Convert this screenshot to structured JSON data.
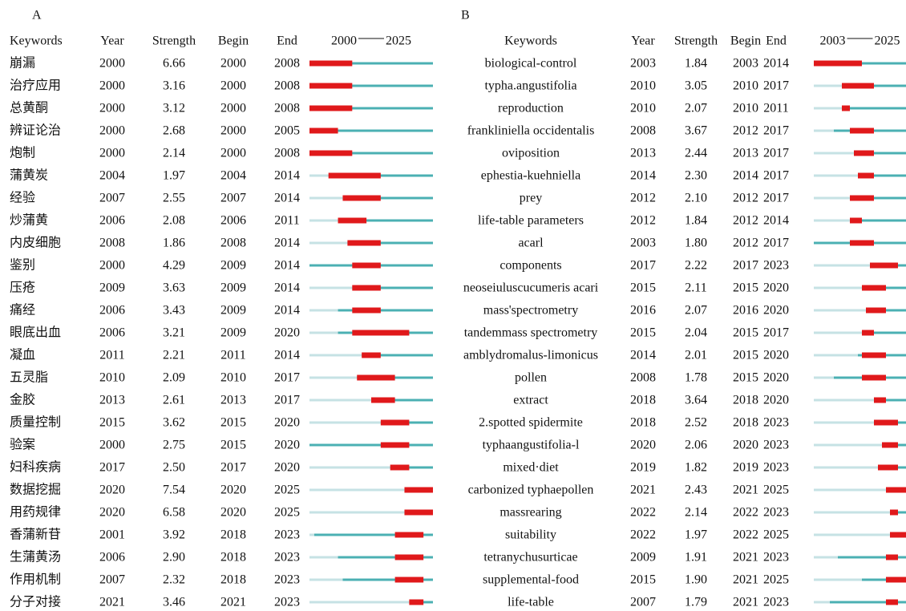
{
  "panels": [
    {
      "label": "A",
      "headers": [
        "Keywords",
        "Year",
        "Strength",
        "Begin",
        "End"
      ],
      "range": {
        "start": 2000,
        "end": 2025
      },
      "rows": [
        [
          "崩漏",
          2000,
          "6.66",
          2000,
          2008
        ],
        [
          "治疗应用",
          2000,
          "3.16",
          2000,
          2008
        ],
        [
          "总黄酮",
          2000,
          "3.12",
          2000,
          2008
        ],
        [
          "辨证论治",
          2000,
          "2.68",
          2000,
          2005
        ],
        [
          "炮制",
          2000,
          "2.14",
          2000,
          2008
        ],
        [
          "蒲黄炭",
          2004,
          "1.97",
          2004,
          2014
        ],
        [
          "经验",
          2007,
          "2.55",
          2007,
          2014
        ],
        [
          "炒蒲黄",
          2006,
          "2.08",
          2006,
          2011
        ],
        [
          "内皮细胞",
          2008,
          "1.86",
          2008,
          2014
        ],
        [
          "鉴别",
          2000,
          "4.29",
          2009,
          2014
        ],
        [
          "压疮",
          2009,
          "3.63",
          2009,
          2014
        ],
        [
          "痛经",
          2006,
          "3.43",
          2009,
          2014
        ],
        [
          "眼底出血",
          2006,
          "3.21",
          2009,
          2020
        ],
        [
          "凝血",
          2011,
          "2.21",
          2011,
          2014
        ],
        [
          "五灵脂",
          2010,
          "2.09",
          2010,
          2017
        ],
        [
          "金胶",
          2013,
          "2.61",
          2013,
          2017
        ],
        [
          "质量控制",
          2015,
          "3.62",
          2015,
          2020
        ],
        [
          "验案",
          2000,
          "2.75",
          2015,
          2020
        ],
        [
          "妇科疾病",
          2017,
          "2.50",
          2017,
          2020
        ],
        [
          "数据挖掘",
          2020,
          "7.54",
          2020,
          2025
        ],
        [
          "用药规律",
          2020,
          "6.58",
          2020,
          2025
        ],
        [
          "香蒲新苷",
          2001,
          "3.92",
          2018,
          2023
        ],
        [
          "生蒲黄汤",
          2006,
          "2.90",
          2018,
          2023
        ],
        [
          "作用机制",
          2007,
          "2.32",
          2018,
          2023
        ],
        [
          "分子对接",
          2021,
          "3.46",
          2021,
          2023
        ]
      ]
    },
    {
      "label": "B",
      "headers": [
        "Keywords",
        "Year",
        "Strength",
        "Begin",
        "End"
      ],
      "range": {
        "start": 2003,
        "end": 2025
      },
      "rows": [
        [
          "biological-control",
          2003,
          "1.84",
          2003,
          2014
        ],
        [
          "typha.angustifolia",
          2010,
          "3.05",
          2010,
          2017
        ],
        [
          "reproduction",
          2010,
          "2.07",
          2010,
          2011
        ],
        [
          "frankliniella occidentalis",
          2008,
          "3.67",
          2012,
          2017
        ],
        [
          "oviposition",
          2013,
          "2.44",
          2013,
          2017
        ],
        [
          "ephestia-kuehniella",
          2014,
          "2.30",
          2014,
          2017
        ],
        [
          "prey",
          2012,
          "2.10",
          2012,
          2017
        ],
        [
          "life-table parameters",
          2012,
          "1.84",
          2012,
          2014
        ],
        [
          "acarl",
          2003,
          "1.80",
          2012,
          2017
        ],
        [
          "components",
          2017,
          "2.22",
          2017,
          2023
        ],
        [
          "neoseiuluscucumeris acari",
          2015,
          "2.11",
          2015,
          2020
        ],
        [
          "mass'spectrometry",
          2016,
          "2.07",
          2016,
          2020
        ],
        [
          "tandemmass spectrometry",
          2015,
          "2.04",
          2015,
          2017
        ],
        [
          "amblydromalus-limonicus",
          2014,
          "2.01",
          2015,
          2020
        ],
        [
          "pollen",
          2008,
          "1.78",
          2015,
          2020
        ],
        [
          "extract",
          2018,
          "3.64",
          2018,
          2020
        ],
        [
          "2.spotted spidermite",
          2018,
          "2.52",
          2018,
          2023
        ],
        [
          "typhaangustifolia-l",
          2020,
          "2.06",
          2020,
          2023
        ],
        [
          "mixed·diet",
          2019,
          "1.82",
          2019,
          2023
        ],
        [
          "carbonized typhaepollen",
          2021,
          "2.43",
          2021,
          2025
        ],
        [
          "massrearing",
          2022,
          "2.14",
          2022,
          2023
        ],
        [
          "suitability",
          2022,
          "1.97",
          2022,
          2025
        ],
        [
          "tetranychusurticae",
          2009,
          "1.91",
          2021,
          2023
        ],
        [
          "supplemental-food",
          2015,
          "1.90",
          2021,
          2025
        ],
        [
          "life-table",
          2007,
          "1.79",
          2021,
          2023
        ]
      ]
    }
  ]
}
